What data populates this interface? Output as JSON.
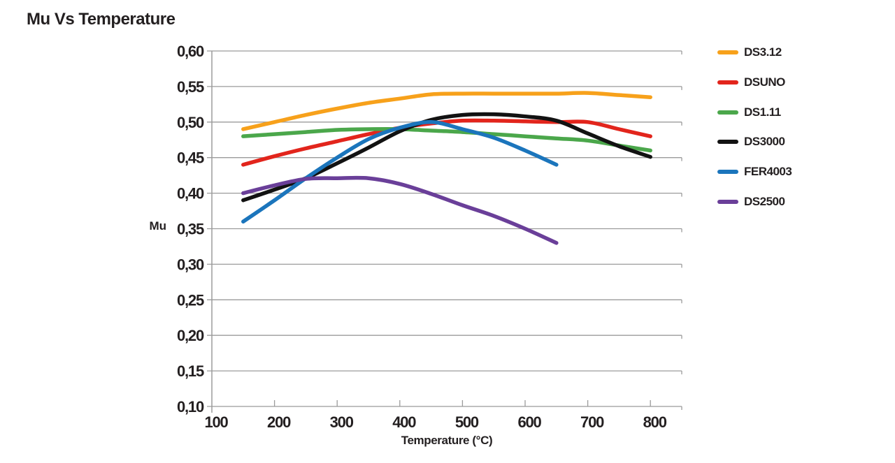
{
  "page": {
    "background": "#FFFFFF",
    "text_color": "#231F20"
  },
  "chart_data": {
    "type": "line",
    "title": "Mu Vs Temperature",
    "xlabel": "Temperature (°C)",
    "ylabel": "Mu",
    "xlim": [
      100,
      850
    ],
    "ylim": [
      0.1,
      0.6
    ],
    "x_ticks": [
      100,
      200,
      300,
      400,
      500,
      600,
      700,
      800
    ],
    "y_ticks": [
      0.6,
      0.55,
      0.5,
      0.45,
      0.4,
      0.35,
      0.3,
      0.25,
      0.2,
      0.15,
      0.1
    ],
    "y_tick_decimal_separator": ",",
    "grid": "horizontal",
    "gridline_color": "#9B9B9B",
    "axis_color": "#9B9B9B",
    "legend_position": "right",
    "series": [
      {
        "name": "DS3.12",
        "color": "#F7A11B",
        "x": [
          150,
          200,
          250,
          300,
          350,
          400,
          450,
          500,
          550,
          600,
          650,
          700,
          750,
          800
        ],
        "y": [
          0.49,
          0.5,
          0.51,
          0.519,
          0.527,
          0.533,
          0.539,
          0.54,
          0.54,
          0.54,
          0.54,
          0.541,
          0.538,
          0.535
        ]
      },
      {
        "name": "DSUNO",
        "color": "#E2251C",
        "x": [
          150,
          200,
          250,
          300,
          350,
          400,
          450,
          500,
          550,
          600,
          650,
          700,
          750,
          800
        ],
        "y": [
          0.44,
          0.452,
          0.463,
          0.473,
          0.483,
          0.492,
          0.498,
          0.502,
          0.502,
          0.501,
          0.5,
          0.5,
          0.49,
          0.48
        ]
      },
      {
        "name": "DS1.11",
        "color": "#4BA74B",
        "x": [
          150,
          200,
          250,
          300,
          350,
          400,
          450,
          500,
          550,
          600,
          650,
          700,
          750,
          800
        ],
        "y": [
          0.48,
          0.483,
          0.486,
          0.489,
          0.49,
          0.49,
          0.488,
          0.486,
          0.483,
          0.48,
          0.477,
          0.474,
          0.467,
          0.46
        ]
      },
      {
        "name": "DS3000",
        "color": "#121212",
        "x": [
          150,
          200,
          250,
          300,
          350,
          400,
          450,
          500,
          550,
          600,
          650,
          700,
          750,
          800
        ],
        "y": [
          0.39,
          0.405,
          0.421,
          0.442,
          0.464,
          0.487,
          0.503,
          0.51,
          0.511,
          0.508,
          0.502,
          0.484,
          0.466,
          0.451
        ]
      },
      {
        "name": "FER4003",
        "color": "#1B75BC",
        "x": [
          150,
          200,
          250,
          300,
          350,
          400,
          450,
          500,
          550,
          600,
          650
        ],
        "y": [
          0.36,
          0.39,
          0.421,
          0.45,
          0.476,
          0.492,
          0.5,
          0.49,
          0.478,
          0.46,
          0.44
        ]
      },
      {
        "name": "DS2500",
        "color": "#6A3F99",
        "x": [
          150,
          200,
          250,
          300,
          350,
          400,
          450,
          500,
          550,
          600,
          650
        ],
        "y": [
          0.4,
          0.411,
          0.42,
          0.421,
          0.421,
          0.413,
          0.399,
          0.383,
          0.368,
          0.35,
          0.33
        ]
      }
    ]
  }
}
